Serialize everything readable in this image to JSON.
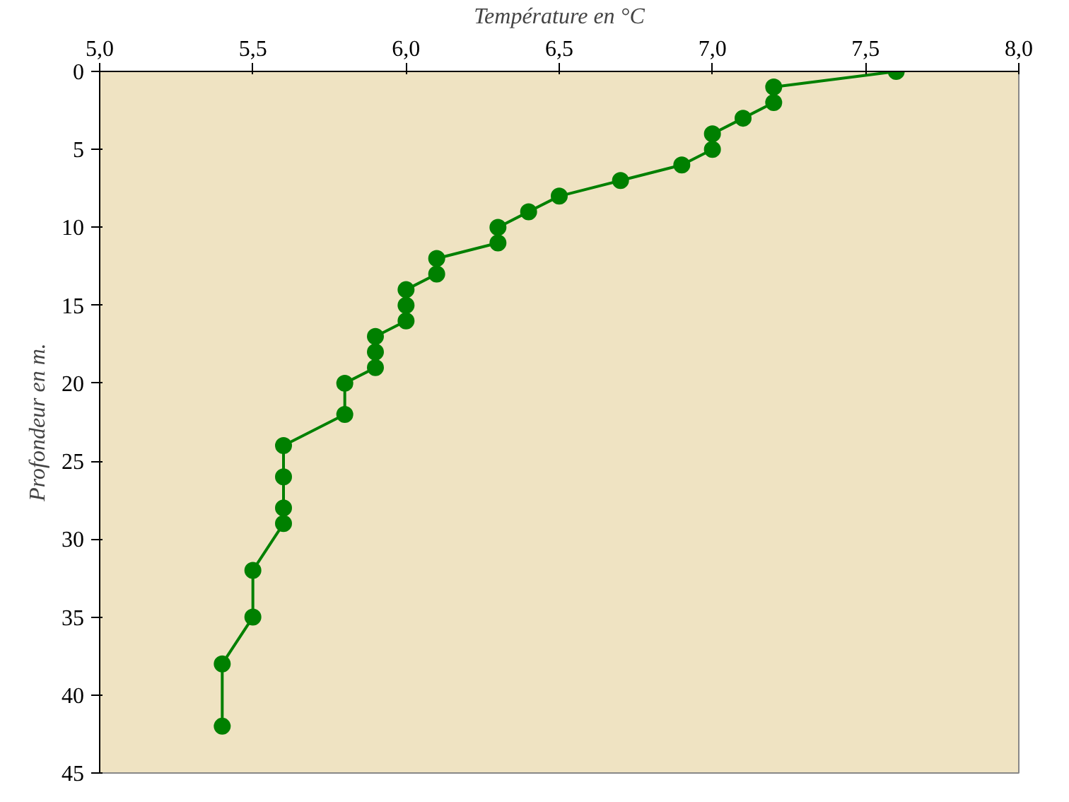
{
  "chart_data": {
    "type": "line",
    "xlabel": "Température en °C",
    "ylabel": "Profondeur en m.",
    "x": [
      7.6,
      7.2,
      7.2,
      7.1,
      7.0,
      7.0,
      6.9,
      6.7,
      6.5,
      6.4,
      6.3,
      6.3,
      6.1,
      6.1,
      6.0,
      6.0,
      6.0,
      5.9,
      5.9,
      5.9,
      5.8,
      5.8,
      5.6,
      5.6,
      5.6,
      5.6,
      5.5,
      5.5,
      5.4,
      5.4
    ],
    "series": [
      {
        "color": "#008000",
        "values": [
          0,
          1,
          2,
          3,
          4,
          5,
          6,
          7,
          8,
          9,
          10,
          11,
          12,
          13,
          14,
          15,
          16,
          17,
          18,
          19,
          20,
          22,
          24,
          26,
          28,
          29,
          32,
          35,
          38,
          42
        ]
      }
    ],
    "xlim": [
      5.0,
      8.0
    ],
    "xticks": [
      {
        "value": 5.0,
        "label": "5,0"
      },
      {
        "value": 5.5,
        "label": "5,5"
      },
      {
        "value": 6.0,
        "label": "6,0"
      },
      {
        "value": 6.5,
        "label": "6,5"
      },
      {
        "value": 7.0,
        "label": "7,0"
      },
      {
        "value": 7.5,
        "label": "7,5"
      },
      {
        "value": 8.0,
        "label": "8,0"
      }
    ],
    "ylim": [
      45,
      0
    ],
    "yticks": [
      0,
      5,
      10,
      15,
      20,
      25,
      30,
      35,
      40,
      45
    ],
    "marker": "circle",
    "line_style": "solid",
    "grid": false
  }
}
